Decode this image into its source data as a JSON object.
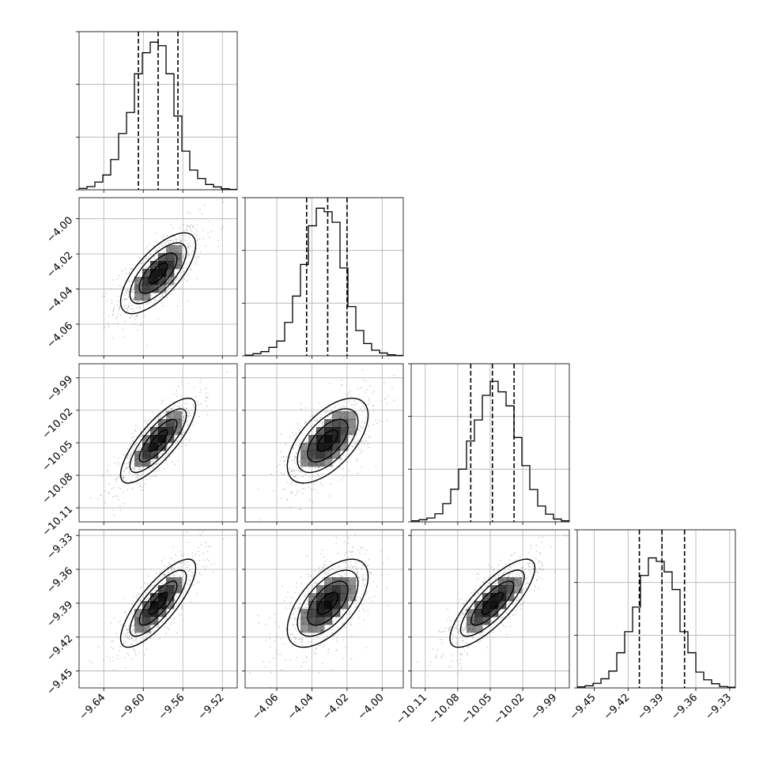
{
  "chart_data": {
    "type": "corner",
    "grid": true,
    "params": [
      {
        "range": [
          -9.665,
          -9.505
        ],
        "ticks": [
          "-9.64",
          "-9.60",
          "-9.56",
          "-9.52"
        ],
        "quantiles": [
          -9.605,
          -9.585,
          -9.565
        ],
        "mean": -9.585,
        "sd": 0.019,
        "hist": [
          0.4,
          0.9,
          2.2,
          4.2,
          8.6,
          16,
          22,
          33,
          39,
          42,
          41,
          33,
          21,
          11,
          5.6,
          3.2,
          1.5,
          0.8,
          0.3,
          0.1
        ]
      },
      {
        "range": [
          -4.078,
          -3.988
        ],
        "ticks": [
          "-4.06",
          "-4.04",
          "-4.02",
          "-4.00"
        ],
        "quantiles": [
          -4.043,
          -4.031,
          -4.02
        ],
        "mean": -4.031,
        "sd": 0.0115,
        "hist": [
          0.2,
          0.6,
          1.2,
          2.4,
          4.2,
          9.5,
          17,
          26,
          37,
          42,
          41,
          38,
          25,
          14,
          7.2,
          3.5,
          1.6,
          0.8,
          0.3,
          0.1
        ]
      },
      {
        "range": [
          -10.123,
          -9.977
        ],
        "ticks": [
          "-10.11",
          "-10.08",
          "-10.05",
          "-10.02",
          "-9.99"
        ],
        "quantiles": [
          -10.068,
          -10.048,
          -10.028
        ],
        "mean": -10.048,
        "sd": 0.0196,
        "hist": [
          0.3,
          0.6,
          1.1,
          2.3,
          5.2,
          9.3,
          15,
          23,
          29,
          36,
          40,
          37,
          33,
          24,
          16,
          9.2,
          4.5,
          2.2,
          0.8,
          0.3
        ]
      },
      {
        "range": [
          -9.465,
          -9.325
        ],
        "ticks": [
          "-9.45",
          "-9.42",
          "-9.39",
          "-9.36",
          "-9.33"
        ],
        "quantiles": [
          -9.41,
          -9.39,
          -9.37
        ],
        "mean": -9.39,
        "sd": 0.0195,
        "hist": [
          0.3,
          0.6,
          1.3,
          2.6,
          4.8,
          10,
          16,
          23,
          32,
          37,
          36,
          33,
          28,
          16,
          10,
          4.5,
          2.3,
          1.2,
          0.4,
          0.2
        ]
      }
    ],
    "hist_ylim": [
      0,
      45
    ],
    "hist_yticks": [
      0,
      15,
      30,
      45
    ],
    "correlations": [
      [
        1.0,
        0.7,
        0.8,
        0.8
      ],
      [
        0.7,
        1.0,
        0.6,
        0.6
      ],
      [
        0.8,
        0.6,
        1.0,
        0.8
      ],
      [
        0.8,
        0.6,
        0.8,
        1.0
      ]
    ],
    "contour_levels": [
      0.5,
      1.0,
      1.5,
      2.0
    ],
    "colors": {
      "line": "#000000",
      "grid": "#b0b0b0",
      "scatter": "#7f7f7f",
      "density": "#000000"
    }
  }
}
